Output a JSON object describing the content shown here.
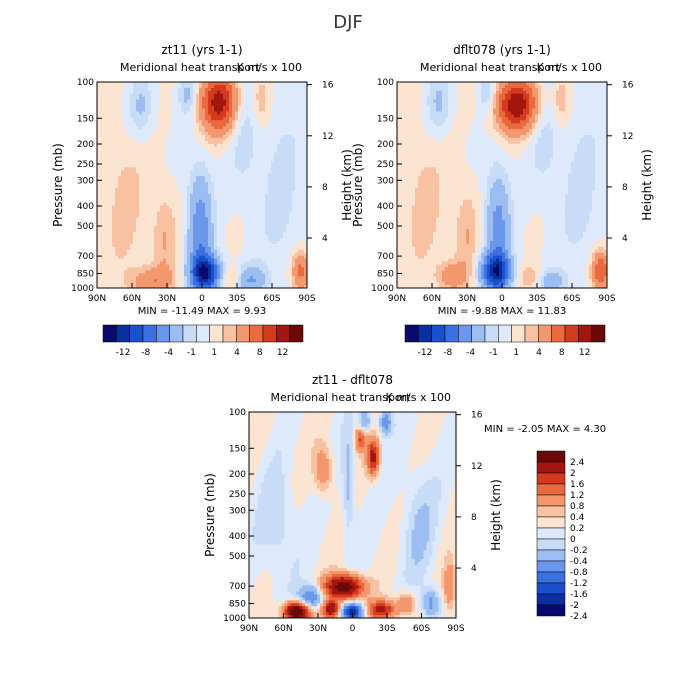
{
  "page": {
    "title": "DJF"
  },
  "colors": {
    "levels_top": [
      "#0a0a6e",
      "#0b2fa0",
      "#1a4fd0",
      "#3a70e0",
      "#6a96ec",
      "#9cbdf2",
      "#c8dcf8",
      "#deeafb",
      "#fbe4d2",
      "#f8c2a2",
      "#f3986e",
      "#ea6a40",
      "#d43a1e",
      "#a31610",
      "#6a0a08"
    ],
    "levels_diff": [
      "#0a0a6e",
      "#0b2fa0",
      "#1a4fd0",
      "#3a70e0",
      "#6a96ec",
      "#9cbdf2",
      "#c8dcf8",
      "#deeafb",
      "#fbe4d2",
      "#f8c2a2",
      "#f3986e",
      "#ea6a40",
      "#d43a1e",
      "#a31610",
      "#6a0a08"
    ]
  },
  "chart_data": [
    {
      "type": "heatmap",
      "title": "zt11 (yrs 1-1)",
      "subtitle": "Meridional heat transport",
      "units_label": "K m/s x 100",
      "ylabel": "Pressure (mb)",
      "ylabel_right": "Height (km)",
      "x_ticks": [
        "90N",
        "60N",
        "30N",
        "0",
        "30S",
        "60S",
        "90S"
      ],
      "y_ticks": [
        "100",
        "150",
        "200",
        "250",
        "300",
        "400",
        "500",
        "700",
        "850",
        "1000"
      ],
      "y_ticks_right": [
        "16",
        "12",
        "8",
        "4"
      ],
      "min_max_text": "MIN = -11.49   MAX =  9.93",
      "min": -11.49,
      "max": 9.93,
      "colorbar_labels": [
        "-12",
        "-8",
        "-4",
        "-1",
        "1",
        "4",
        "8",
        "12"
      ],
      "fields": [
        {
          "x": 0.58,
          "y": 0.1,
          "a": 9.0,
          "sx": 0.06,
          "sy": 0.1
        },
        {
          "x": 0.52,
          "y": 0.93,
          "a": -10.5,
          "sx": 0.05,
          "sy": 0.06
        },
        {
          "x": 0.49,
          "y": 0.72,
          "a": -5.5,
          "sx": 0.04,
          "sy": 0.2
        },
        {
          "x": 0.26,
          "y": 0.97,
          "a": 3.5,
          "sx": 0.07,
          "sy": 0.05
        },
        {
          "x": 0.32,
          "y": 0.75,
          "a": 2.0,
          "sx": 0.04,
          "sy": 0.16
        },
        {
          "x": 0.73,
          "y": 0.96,
          "a": -4.0,
          "sx": 0.05,
          "sy": 0.05
        },
        {
          "x": 0.64,
          "y": 0.95,
          "a": 2.2,
          "sx": 0.04,
          "sy": 0.04
        },
        {
          "x": 0.97,
          "y": 0.92,
          "a": 5.0,
          "sx": 0.03,
          "sy": 0.07
        },
        {
          "x": 0.21,
          "y": 0.12,
          "a": -2.2,
          "sx": 0.04,
          "sy": 0.1
        },
        {
          "x": 0.43,
          "y": 0.06,
          "a": -2.5,
          "sx": 0.03,
          "sy": 0.07
        },
        {
          "x": 0.7,
          "y": 0.25,
          "a": -1.5,
          "sx": 0.05,
          "sy": 0.2
        },
        {
          "x": 0.78,
          "y": 0.08,
          "a": 2.0,
          "sx": 0.03,
          "sy": 0.09
        },
        {
          "x": 0.13,
          "y": 0.6,
          "a": 1.4,
          "sx": 0.07,
          "sy": 0.25
        },
        {
          "x": 0.88,
          "y": 0.55,
          "a": -1.3,
          "sx": 0.08,
          "sy": 0.35
        }
      ]
    },
    {
      "type": "heatmap",
      "title": "dflt078 (yrs 1-1)",
      "subtitle": "Meridional heat transport",
      "units_label": "K m/s x 100",
      "ylabel": "Pressure (mb)",
      "ylabel_right": "Height (km)",
      "x_ticks": [
        "90N",
        "60N",
        "30N",
        "0",
        "30S",
        "60S",
        "90S"
      ],
      "y_ticks": [
        "100",
        "150",
        "200",
        "250",
        "300",
        "400",
        "500",
        "700",
        "850",
        "1000"
      ],
      "y_ticks_right": [
        "16",
        "12",
        "8",
        "4"
      ],
      "min_max_text": "MIN = -9.88   MAX = 11.83",
      "min": -9.88,
      "max": 11.83,
      "colorbar_labels": [
        "-12",
        "-8",
        "-4",
        "-1",
        "1",
        "4",
        "8",
        "12"
      ],
      "fields": [
        {
          "x": 0.57,
          "y": 0.11,
          "a": 9.5,
          "sx": 0.07,
          "sy": 0.09
        },
        {
          "x": 0.47,
          "y": 0.92,
          "a": -9.5,
          "sx": 0.05,
          "sy": 0.06
        },
        {
          "x": 0.48,
          "y": 0.72,
          "a": -5.0,
          "sx": 0.04,
          "sy": 0.2
        },
        {
          "x": 0.26,
          "y": 0.94,
          "a": 3.0,
          "sx": 0.05,
          "sy": 0.05
        },
        {
          "x": 0.33,
          "y": 0.73,
          "a": 2.0,
          "sx": 0.04,
          "sy": 0.16
        },
        {
          "x": 0.73,
          "y": 0.97,
          "a": -3.0,
          "sx": 0.05,
          "sy": 0.04
        },
        {
          "x": 0.64,
          "y": 0.95,
          "a": 2.0,
          "sx": 0.04,
          "sy": 0.04
        },
        {
          "x": 0.97,
          "y": 0.92,
          "a": 6.5,
          "sx": 0.03,
          "sy": 0.07
        },
        {
          "x": 0.2,
          "y": 0.1,
          "a": -2.2,
          "sx": 0.04,
          "sy": 0.1
        },
        {
          "x": 0.43,
          "y": 0.05,
          "a": -2.5,
          "sx": 0.03,
          "sy": 0.07
        },
        {
          "x": 0.7,
          "y": 0.25,
          "a": -1.5,
          "sx": 0.05,
          "sy": 0.2
        },
        {
          "x": 0.78,
          "y": 0.08,
          "a": 2.0,
          "sx": 0.03,
          "sy": 0.09
        },
        {
          "x": 0.13,
          "y": 0.6,
          "a": 1.4,
          "sx": 0.07,
          "sy": 0.25
        },
        {
          "x": 0.88,
          "y": 0.55,
          "a": -1.3,
          "sx": 0.08,
          "sy": 0.35
        }
      ]
    },
    {
      "type": "heatmap",
      "title": "zt11 - dflt078",
      "subtitle": "Meridional heat transport",
      "units_label": "K m/s x 100",
      "ylabel": "Pressure (mb)",
      "ylabel_right": "Height (km)",
      "x_ticks": [
        "90N",
        "60N",
        "30N",
        "0",
        "30S",
        "60S",
        "90S"
      ],
      "y_ticks": [
        "100",
        "150",
        "200",
        "250",
        "300",
        "400",
        "500",
        "700",
        "850",
        "1000"
      ],
      "y_ticks_right": [
        "16",
        "12",
        "8",
        "4"
      ],
      "min_max_text": "MIN =   -2.05   MAX =    4.30",
      "min": -2.05,
      "max": 4.3,
      "colorbar_labels": [
        "2.4",
        "2",
        "1.6",
        "1.2",
        "0.8",
        "0.4",
        "0.2",
        "0",
        "-0.2",
        "-0.4",
        "-0.8",
        "-1.2",
        "-1.6",
        "-2",
        "-2.4"
      ],
      "fields": [
        {
          "x": 0.46,
          "y": 0.85,
          "a": 3.0,
          "sx": 0.06,
          "sy": 0.04
        },
        {
          "x": 0.23,
          "y": 0.97,
          "a": 3.5,
          "sx": 0.04,
          "sy": 0.03
        },
        {
          "x": 0.4,
          "y": 0.96,
          "a": 2.2,
          "sx": 0.03,
          "sy": 0.03
        },
        {
          "x": 0.5,
          "y": 0.97,
          "a": -2.2,
          "sx": 0.04,
          "sy": 0.03
        },
        {
          "x": 0.64,
          "y": 0.96,
          "a": 1.8,
          "sx": 0.05,
          "sy": 0.03
        },
        {
          "x": 0.3,
          "y": 0.9,
          "a": -1.3,
          "sx": 0.04,
          "sy": 0.04
        },
        {
          "x": 0.6,
          "y": 0.22,
          "a": 1.8,
          "sx": 0.02,
          "sy": 0.06
        },
        {
          "x": 0.54,
          "y": 0.13,
          "a": 1.2,
          "sx": 0.02,
          "sy": 0.04
        },
        {
          "x": 0.66,
          "y": 0.05,
          "a": -1.2,
          "sx": 0.02,
          "sy": 0.04
        },
        {
          "x": 0.56,
          "y": 0.05,
          "a": -1.0,
          "sx": 0.02,
          "sy": 0.04
        },
        {
          "x": 0.36,
          "y": 0.28,
          "a": 0.8,
          "sx": 0.03,
          "sy": 0.08
        },
        {
          "x": 0.48,
          "y": 0.35,
          "a": -0.6,
          "sx": 0.02,
          "sy": 0.18
        },
        {
          "x": 0.82,
          "y": 0.55,
          "a": -0.4,
          "sx": 0.06,
          "sy": 0.2
        },
        {
          "x": 0.14,
          "y": 0.55,
          "a": -0.4,
          "sx": 0.06,
          "sy": 0.18
        },
        {
          "x": 0.88,
          "y": 0.93,
          "a": -1.0,
          "sx": 0.03,
          "sy": 0.05
        },
        {
          "x": 0.76,
          "y": 0.93,
          "a": 0.9,
          "sx": 0.03,
          "sy": 0.04
        },
        {
          "x": 0.97,
          "y": 0.85,
          "a": 0.8,
          "sx": 0.02,
          "sy": 0.08
        }
      ]
    }
  ]
}
